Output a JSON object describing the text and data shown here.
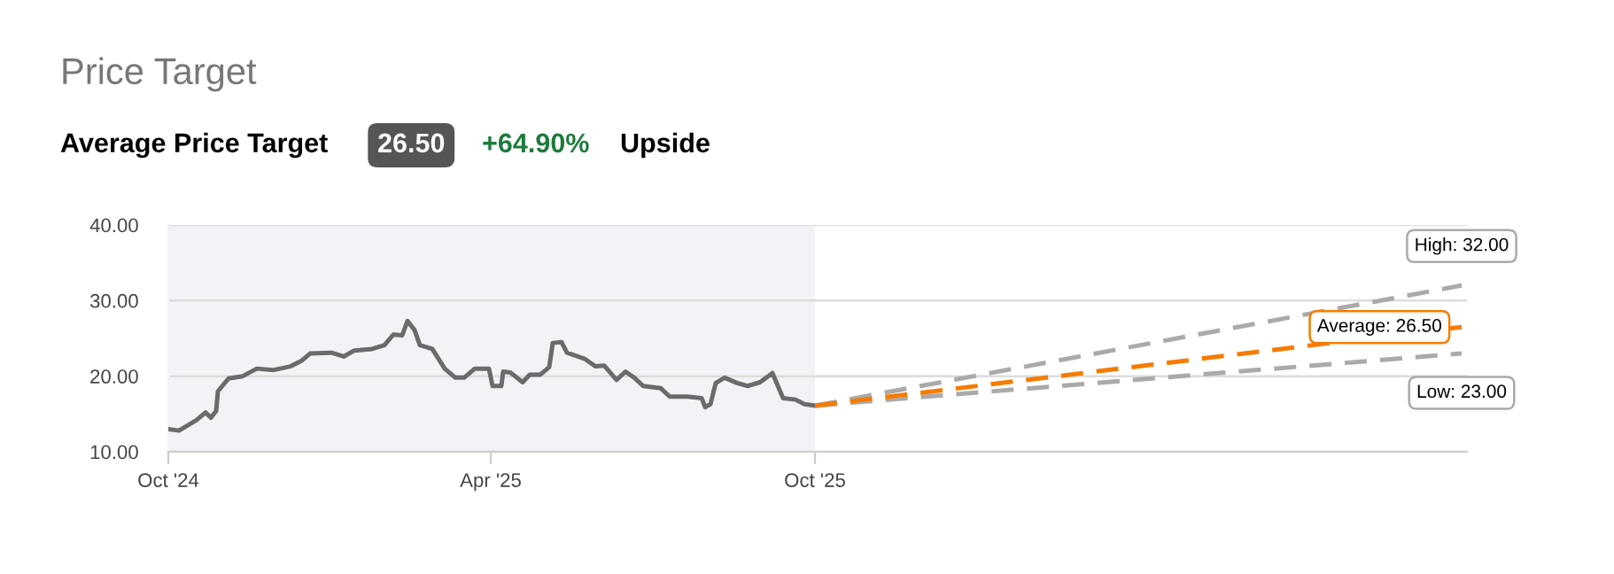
{
  "chart_data": {
    "type": "line",
    "title": "Price Target",
    "subtitle": "Average Price Target",
    "annotations": [
      "26.50",
      "+64.90%",
      "Upside",
      {
        "text": "High: 32.00",
        "x": "2026-10-01",
        "y": 32
      },
      {
        "text": "Average: 26.50",
        "x": "2026-10-01",
        "y": 26.5
      },
      {
        "text": "Low: 23.00",
        "x": "2026-10-01",
        "y": 23
      }
    ],
    "series": [
      {
        "color": "#6b6b6b",
        "line_style": "solid",
        "x": [
          "2024-10-01",
          "2024-10-07",
          "2024-10-17",
          "2024-10-22",
          "2024-10-25",
          "2024-10-28",
          "2024-10-29",
          "2024-11-04",
          "2024-11-12",
          "2024-11-20",
          "2024-11-29",
          "2024-12-09",
          "2024-12-15",
          "2024-12-20",
          "2025-01-01",
          "2025-01-08",
          "2025-01-14",
          "2025-01-24",
          "2025-01-31",
          "2025-02-05",
          "2025-02-10",
          "2025-02-13",
          "2025-02-17",
          "2025-02-20",
          "2025-02-27",
          "2025-03-06",
          "2025-03-12",
          "2025-03-17",
          "2025-03-23",
          "2025-03-31",
          "2025-04-02",
          "2025-04-07",
          "2025-04-08",
          "2025-04-12",
          "2025-04-19",
          "2025-04-23",
          "2025-04-29",
          "2025-05-04",
          "2025-05-06",
          "2025-05-11",
          "2025-05-14",
          "2025-05-24",
          "2025-05-30",
          "2025-06-04",
          "2025-06-11",
          "2025-06-16",
          "2025-06-21",
          "2025-06-26",
          "2025-07-06",
          "2025-07-11",
          "2025-07-21",
          "2025-07-29",
          "2025-07-31",
          "2025-08-03",
          "2025-08-06",
          "2025-08-11",
          "2025-08-18",
          "2025-08-24",
          "2025-08-31",
          "2025-09-07",
          "2025-09-13",
          "2025-09-20",
          "2025-09-25",
          "2025-10-01"
        ],
        "values": [
          13.0,
          12.8,
          14.2,
          15.2,
          14.5,
          15.4,
          18.0,
          19.7,
          20.0,
          21.0,
          20.8,
          21.3,
          22.0,
          23.0,
          23.1,
          22.6,
          23.4,
          23.6,
          24.1,
          25.5,
          25.4,
          27.3,
          26.1,
          24.1,
          23.6,
          21.0,
          19.8,
          19.8,
          21.0,
          21.0,
          18.7,
          18.7,
          20.6,
          20.5,
          19.2,
          20.2,
          20.2,
          21.2,
          24.4,
          24.5,
          23.1,
          22.3,
          21.3,
          21.4,
          19.5,
          20.6,
          19.8,
          18.7,
          18.4,
          17.3,
          17.3,
          17.1,
          15.9,
          16.3,
          19.1,
          19.8,
          19.1,
          18.7,
          19.2,
          20.4,
          17.1,
          16.9,
          16.3,
          16.1
        ]
      },
      {
        "color": "#aaaaaa",
        "line_style": "dashed",
        "x": [
          "2025-10-01",
          "2026-10-01"
        ],
        "values": [
          16.1,
          32
        ]
      },
      {
        "color": "#aaaaaa",
        "line_style": "dashed",
        "x": [
          "2025-10-01",
          "2026-10-01"
        ],
        "values": [
          16.1,
          23
        ]
      },
      {
        "color": "#f57c00",
        "line_style": "dashed",
        "x": [
          "2025-10-01",
          "2026-10-01"
        ],
        "values": [
          16.1,
          26.5
        ]
      }
    ],
    "bands": [
      {
        "axis": "x",
        "from": "2024-10-01",
        "to": "2025-10-01",
        "color": "#f2f3f6"
      }
    ],
    "xlim": [
      "2024-10-01",
      "2026-10-04"
    ],
    "xticks": [
      {
        "value": "2024-10-01",
        "label": "Oct '24"
      },
      {
        "value": "2025-04-01",
        "label": "Apr '25"
      },
      {
        "value": "2025-10-01",
        "label": "Oct '25"
      }
    ],
    "ylim": [
      10,
      40
    ],
    "yticks": [
      {
        "value": 10,
        "label": "10.00"
      },
      {
        "value": 20,
        "label": "20.00"
      },
      {
        "value": 30,
        "label": "30.00"
      },
      {
        "value": 40,
        "label": "40.00"
      }
    ],
    "grid": "y",
    "marker": "none"
  }
}
